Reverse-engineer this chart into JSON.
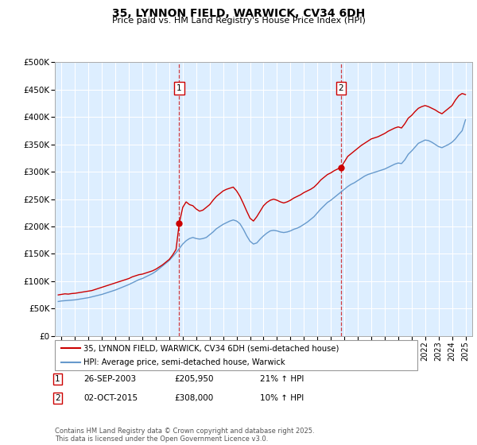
{
  "title": "35, LYNNON FIELD, WARWICK, CV34 6DH",
  "subtitle": "Price paid vs. HM Land Registry's House Price Index (HPI)",
  "red_label": "35, LYNNON FIELD, WARWICK, CV34 6DH (semi-detached house)",
  "blue_label": "HPI: Average price, semi-detached house, Warwick",
  "footnote": "Contains HM Land Registry data © Crown copyright and database right 2025.\nThis data is licensed under the Open Government Licence v3.0.",
  "marker1_date": "26-SEP-2003",
  "marker1_price": 205950,
  "marker1_hpi": "21% ↑ HPI",
  "marker1_x": 2003.74,
  "marker2_date": "02-OCT-2015",
  "marker2_price": 308000,
  "marker2_hpi": "10% ↑ HPI",
  "marker2_x": 2015.75,
  "ylim": [
    0,
    500000
  ],
  "xlim": [
    1994.5,
    2025.5
  ],
  "yticks": [
    0,
    50000,
    100000,
    150000,
    200000,
    250000,
    300000,
    350000,
    400000,
    450000,
    500000
  ],
  "ytick_labels": [
    "£0",
    "£50K",
    "£100K",
    "£150K",
    "£200K",
    "£250K",
    "£300K",
    "£350K",
    "£400K",
    "£450K",
    "£500K"
  ],
  "xticks": [
    1995,
    1996,
    1997,
    1998,
    1999,
    2000,
    2001,
    2002,
    2003,
    2004,
    2005,
    2006,
    2007,
    2008,
    2009,
    2010,
    2011,
    2012,
    2013,
    2014,
    2015,
    2016,
    2017,
    2018,
    2019,
    2020,
    2021,
    2022,
    2023,
    2024,
    2025
  ],
  "red_color": "#cc0000",
  "blue_color": "#6699cc",
  "bg_color": "#ddeeff",
  "grid_color": "#ffffff",
  "red_data": [
    [
      1994.75,
      75000
    ],
    [
      1995.0,
      76000
    ],
    [
      1995.25,
      77000
    ],
    [
      1995.5,
      76500
    ],
    [
      1995.75,
      77500
    ],
    [
      1996.0,
      78000
    ],
    [
      1996.25,
      79000
    ],
    [
      1996.5,
      80000
    ],
    [
      1996.75,
      81000
    ],
    [
      1997.0,
      82000
    ],
    [
      1997.25,
      83000
    ],
    [
      1997.5,
      85000
    ],
    [
      1997.75,
      87000
    ],
    [
      1998.0,
      89000
    ],
    [
      1998.25,
      91000
    ],
    [
      1998.5,
      93000
    ],
    [
      1998.75,
      95000
    ],
    [
      1999.0,
      97000
    ],
    [
      1999.25,
      99000
    ],
    [
      1999.5,
      101000
    ],
    [
      1999.75,
      103000
    ],
    [
      2000.0,
      105000
    ],
    [
      2000.25,
      108000
    ],
    [
      2000.5,
      110000
    ],
    [
      2000.75,
      112000
    ],
    [
      2001.0,
      113000
    ],
    [
      2001.25,
      115000
    ],
    [
      2001.5,
      117000
    ],
    [
      2001.75,
      119000
    ],
    [
      2002.0,
      122000
    ],
    [
      2002.25,
      126000
    ],
    [
      2002.5,
      130000
    ],
    [
      2002.75,
      135000
    ],
    [
      2003.0,
      140000
    ],
    [
      2003.25,
      148000
    ],
    [
      2003.5,
      158000
    ],
    [
      2003.74,
      205950
    ],
    [
      2004.0,
      235000
    ],
    [
      2004.25,
      245000
    ],
    [
      2004.5,
      240000
    ],
    [
      2004.75,
      238000
    ],
    [
      2005.0,
      232000
    ],
    [
      2005.25,
      228000
    ],
    [
      2005.5,
      230000
    ],
    [
      2005.75,
      235000
    ],
    [
      2006.0,
      240000
    ],
    [
      2006.25,
      248000
    ],
    [
      2006.5,
      255000
    ],
    [
      2006.75,
      260000
    ],
    [
      2007.0,
      265000
    ],
    [
      2007.25,
      268000
    ],
    [
      2007.5,
      270000
    ],
    [
      2007.75,
      272000
    ],
    [
      2008.0,
      265000
    ],
    [
      2008.25,
      255000
    ],
    [
      2008.5,
      242000
    ],
    [
      2008.75,
      228000
    ],
    [
      2009.0,
      215000
    ],
    [
      2009.25,
      210000
    ],
    [
      2009.5,
      218000
    ],
    [
      2009.75,
      228000
    ],
    [
      2010.0,
      238000
    ],
    [
      2010.25,
      244000
    ],
    [
      2010.5,
      248000
    ],
    [
      2010.75,
      250000
    ],
    [
      2011.0,
      248000
    ],
    [
      2011.25,
      245000
    ],
    [
      2011.5,
      243000
    ],
    [
      2011.75,
      245000
    ],
    [
      2012.0,
      248000
    ],
    [
      2012.25,
      252000
    ],
    [
      2012.5,
      255000
    ],
    [
      2012.75,
      258000
    ],
    [
      2013.0,
      262000
    ],
    [
      2013.25,
      265000
    ],
    [
      2013.5,
      268000
    ],
    [
      2013.75,
      272000
    ],
    [
      2014.0,
      278000
    ],
    [
      2014.25,
      285000
    ],
    [
      2014.5,
      290000
    ],
    [
      2014.75,
      295000
    ],
    [
      2015.0,
      298000
    ],
    [
      2015.25,
      302000
    ],
    [
      2015.5,
      305000
    ],
    [
      2015.75,
      308000
    ],
    [
      2016.0,
      318000
    ],
    [
      2016.25,
      328000
    ],
    [
      2016.5,
      333000
    ],
    [
      2016.75,
      338000
    ],
    [
      2017.0,
      343000
    ],
    [
      2017.25,
      348000
    ],
    [
      2017.5,
      352000
    ],
    [
      2017.75,
      356000
    ],
    [
      2018.0,
      360000
    ],
    [
      2018.25,
      362000
    ],
    [
      2018.5,
      364000
    ],
    [
      2018.75,
      367000
    ],
    [
      2019.0,
      370000
    ],
    [
      2019.25,
      374000
    ],
    [
      2019.5,
      377000
    ],
    [
      2019.75,
      380000
    ],
    [
      2020.0,
      382000
    ],
    [
      2020.25,
      380000
    ],
    [
      2020.5,
      388000
    ],
    [
      2020.75,
      398000
    ],
    [
      2021.0,
      403000
    ],
    [
      2021.25,
      410000
    ],
    [
      2021.5,
      416000
    ],
    [
      2021.75,
      419000
    ],
    [
      2022.0,
      421000
    ],
    [
      2022.25,
      419000
    ],
    [
      2022.5,
      416000
    ],
    [
      2022.75,
      413000
    ],
    [
      2023.0,
      409000
    ],
    [
      2023.25,
      406000
    ],
    [
      2023.5,
      411000
    ],
    [
      2023.75,
      416000
    ],
    [
      2024.0,
      421000
    ],
    [
      2024.25,
      431000
    ],
    [
      2024.5,
      439000
    ],
    [
      2024.75,
      443000
    ],
    [
      2025.0,
      441000
    ]
  ],
  "blue_data": [
    [
      1994.75,
      63000
    ],
    [
      1995.0,
      64000
    ],
    [
      1995.25,
      64500
    ],
    [
      1995.5,
      65000
    ],
    [
      1995.75,
      65500
    ],
    [
      1996.0,
      66000
    ],
    [
      1996.25,
      67000
    ],
    [
      1996.5,
      68000
    ],
    [
      1996.75,
      69000
    ],
    [
      1997.0,
      70000
    ],
    [
      1997.25,
      71500
    ],
    [
      1997.5,
      73000
    ],
    [
      1997.75,
      74500
    ],
    [
      1998.0,
      76000
    ],
    [
      1998.25,
      78000
    ],
    [
      1998.5,
      80000
    ],
    [
      1998.75,
      82000
    ],
    [
      1999.0,
      84000
    ],
    [
      1999.25,
      86500
    ],
    [
      1999.5,
      89000
    ],
    [
      1999.75,
      91500
    ],
    [
      2000.0,
      94000
    ],
    [
      2000.25,
      97000
    ],
    [
      2000.5,
      100000
    ],
    [
      2000.75,
      103000
    ],
    [
      2001.0,
      105000
    ],
    [
      2001.25,
      108000
    ],
    [
      2001.5,
      111000
    ],
    [
      2001.75,
      114000
    ],
    [
      2002.0,
      118000
    ],
    [
      2002.25,
      123000
    ],
    [
      2002.5,
      128000
    ],
    [
      2002.75,
      133000
    ],
    [
      2003.0,
      138000
    ],
    [
      2003.25,
      145000
    ],
    [
      2003.5,
      152000
    ],
    [
      2003.75,
      160000
    ],
    [
      2004.0,
      168000
    ],
    [
      2004.25,
      174000
    ],
    [
      2004.5,
      178000
    ],
    [
      2004.75,
      180000
    ],
    [
      2005.0,
      178000
    ],
    [
      2005.25,
      177000
    ],
    [
      2005.5,
      178000
    ],
    [
      2005.75,
      180000
    ],
    [
      2006.0,
      185000
    ],
    [
      2006.25,
      190000
    ],
    [
      2006.5,
      196000
    ],
    [
      2006.75,
      200000
    ],
    [
      2007.0,
      204000
    ],
    [
      2007.25,
      207000
    ],
    [
      2007.5,
      210000
    ],
    [
      2007.75,
      212000
    ],
    [
      2008.0,
      210000
    ],
    [
      2008.25,
      205000
    ],
    [
      2008.5,
      195000
    ],
    [
      2008.75,
      183000
    ],
    [
      2009.0,
      173000
    ],
    [
      2009.25,
      168000
    ],
    [
      2009.5,
      170000
    ],
    [
      2009.75,
      177000
    ],
    [
      2010.0,
      183000
    ],
    [
      2010.25,
      188000
    ],
    [
      2010.5,
      192000
    ],
    [
      2010.75,
      193000
    ],
    [
      2011.0,
      192000
    ],
    [
      2011.25,
      190000
    ],
    [
      2011.5,
      189000
    ],
    [
      2011.75,
      190000
    ],
    [
      2012.0,
      192000
    ],
    [
      2012.25,
      195000
    ],
    [
      2012.5,
      197000
    ],
    [
      2012.75,
      200000
    ],
    [
      2013.0,
      204000
    ],
    [
      2013.25,
      208000
    ],
    [
      2013.5,
      213000
    ],
    [
      2013.75,
      218000
    ],
    [
      2014.0,
      225000
    ],
    [
      2014.25,
      232000
    ],
    [
      2014.5,
      238000
    ],
    [
      2014.75,
      244000
    ],
    [
      2015.0,
      248000
    ],
    [
      2015.25,
      253000
    ],
    [
      2015.5,
      258000
    ],
    [
      2015.75,
      263000
    ],
    [
      2016.0,
      268000
    ],
    [
      2016.25,
      273000
    ],
    [
      2016.5,
      277000
    ],
    [
      2016.75,
      280000
    ],
    [
      2017.0,
      284000
    ],
    [
      2017.25,
      288000
    ],
    [
      2017.5,
      292000
    ],
    [
      2017.75,
      295000
    ],
    [
      2018.0,
      297000
    ],
    [
      2018.25,
      299000
    ],
    [
      2018.5,
      301000
    ],
    [
      2018.75,
      303000
    ],
    [
      2019.0,
      305000
    ],
    [
      2019.25,
      308000
    ],
    [
      2019.5,
      311000
    ],
    [
      2019.75,
      314000
    ],
    [
      2020.0,
      316000
    ],
    [
      2020.25,
      315000
    ],
    [
      2020.5,
      322000
    ],
    [
      2020.75,
      332000
    ],
    [
      2021.0,
      338000
    ],
    [
      2021.25,
      345000
    ],
    [
      2021.5,
      352000
    ],
    [
      2021.75,
      355000
    ],
    [
      2022.0,
      358000
    ],
    [
      2022.25,
      357000
    ],
    [
      2022.5,
      354000
    ],
    [
      2022.75,
      350000
    ],
    [
      2023.0,
      346000
    ],
    [
      2023.25,
      344000
    ],
    [
      2023.5,
      347000
    ],
    [
      2023.75,
      350000
    ],
    [
      2024.0,
      354000
    ],
    [
      2024.25,
      360000
    ],
    [
      2024.5,
      368000
    ],
    [
      2024.75,
      375000
    ],
    [
      2025.0,
      395000
    ]
  ]
}
